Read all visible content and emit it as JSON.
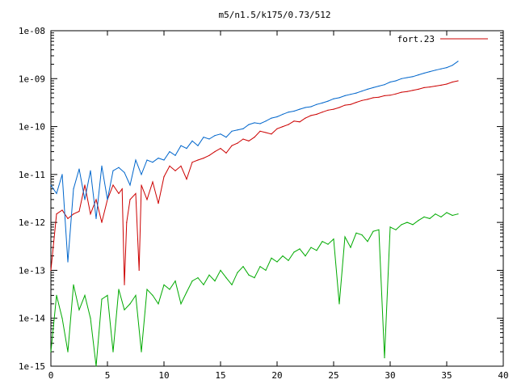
{
  "chart_data": {
    "type": "line",
    "title": "m5/n1.5/k175/0.73/512",
    "xlabel": "",
    "ylabel": "",
    "xlim": [
      0,
      40
    ],
    "ylim": [
      1e-15,
      1e-08
    ],
    "yscale": "log",
    "grid": false,
    "legend_position": "top-right",
    "x_ticks": [
      "0",
      "5",
      "10",
      "15",
      "20",
      "25",
      "30",
      "35",
      "40"
    ],
    "y_ticks": [
      "1e-15",
      "1e-14",
      "1e-13",
      "1e-12",
      "1e-11",
      "1e-10",
      "1e-09",
      "1e-08"
    ],
    "series": [
      {
        "name": "fort.23",
        "color": "#cc0000",
        "x": [
          0,
          0.5,
          1,
          1.5,
          2,
          2.5,
          3,
          3.5,
          4,
          4.5,
          5,
          5.5,
          6,
          6.3,
          6.5,
          6.7,
          7,
          7.5,
          7.8,
          8,
          8.5,
          9,
          9.5,
          10,
          10.5,
          11,
          11.5,
          12,
          12.5,
          13,
          13.5,
          14,
          14.5,
          15,
          15.5,
          16,
          16.5,
          17,
          17.5,
          18,
          18.5,
          19,
          19.5,
          20,
          20.5,
          21,
          21.5,
          22,
          22.5,
          23,
          23.5,
          24,
          24.5,
          25,
          25.5,
          26,
          26.5,
          27,
          27.5,
          28,
          28.5,
          29,
          29.5,
          30,
          30.5,
          31,
          31.5,
          32,
          32.5,
          33,
          33.5,
          34,
          34.5,
          35,
          35.5,
          36
        ],
        "y": [
          1e-13,
          1.5e-12,
          1.8e-12,
          1.2e-12,
          1.5e-12,
          1.7e-12,
          6e-12,
          1.5e-12,
          3e-12,
          1e-12,
          3e-12,
          6e-12,
          4e-12,
          5e-12,
          5e-14,
          1e-12,
          3e-12,
          4e-12,
          1e-13,
          6e-12,
          3e-12,
          7e-12,
          2.5e-12,
          9e-12,
          1.5e-11,
          1.2e-11,
          1.5e-11,
          8e-12,
          1.8e-11,
          2e-11,
          2.2e-11,
          2.5e-11,
          3e-11,
          3.5e-11,
          2.8e-11,
          4e-11,
          4.5e-11,
          5.5e-11,
          5e-11,
          6e-11,
          8e-11,
          7.5e-11,
          7e-11,
          9e-11,
          1e-10,
          1.1e-10,
          1.3e-10,
          1.25e-10,
          1.5e-10,
          1.7e-10,
          1.8e-10,
          2e-10,
          2.2e-10,
          2.3e-10,
          2.5e-10,
          2.8e-10,
          2.9e-10,
          3.2e-10,
          3.5e-10,
          3.7e-10,
          4e-10,
          4.1e-10,
          4.4e-10,
          4.5e-10,
          4.8e-10,
          5.2e-10,
          5.4e-10,
          5.7e-10,
          6e-10,
          6.5e-10,
          6.7e-10,
          7e-10,
          7.3e-10,
          7.7e-10,
          8.5e-10,
          9e-10
        ]
      },
      {
        "color": "#0066cc",
        "x": [
          0,
          0.5,
          1,
          1.5,
          2,
          2.5,
          3,
          3.5,
          4,
          4.5,
          5,
          5.5,
          6,
          6.5,
          7,
          7.5,
          8,
          8.5,
          9,
          9.5,
          10,
          10.5,
          11,
          11.5,
          12,
          12.5,
          13,
          13.5,
          14,
          14.5,
          15,
          15.5,
          16,
          16.5,
          17,
          17.5,
          18,
          18.5,
          19,
          19.5,
          20,
          20.5,
          21,
          21.5,
          22,
          22.5,
          23,
          23.5,
          24,
          24.5,
          25,
          25.5,
          26,
          26.5,
          27,
          27.5,
          28,
          28.5,
          29,
          29.5,
          30,
          30.5,
          31,
          31.5,
          32,
          32.5,
          33,
          33.5,
          34,
          34.5,
          35,
          35.5,
          36
        ],
        "y": [
          6e-12,
          4e-12,
          1e-11,
          1.5e-13,
          5e-12,
          1.3e-11,
          3e-12,
          1.2e-11,
          1.2e-12,
          1.5e-11,
          3e-12,
          1.2e-11,
          1.4e-11,
          1.1e-11,
          6e-12,
          2e-11,
          1e-11,
          2e-11,
          1.8e-11,
          2.2e-11,
          2e-11,
          3e-11,
          2.5e-11,
          4e-11,
          3.5e-11,
          5e-11,
          4e-11,
          6e-11,
          5.5e-11,
          6.5e-11,
          7e-11,
          6e-11,
          8e-11,
          8.5e-11,
          9e-11,
          1.1e-10,
          1.2e-10,
          1.15e-10,
          1.3e-10,
          1.5e-10,
          1.6e-10,
          1.8e-10,
          2e-10,
          2.1e-10,
          2.3e-10,
          2.5e-10,
          2.6e-10,
          2.9e-10,
          3.1e-10,
          3.4e-10,
          3.8e-10,
          4e-10,
          4.4e-10,
          4.7e-10,
          5e-10,
          5.5e-10,
          6e-10,
          6.5e-10,
          7e-10,
          7.5e-10,
          8.5e-10,
          9e-10,
          1e-09,
          1.05e-09,
          1.1e-09,
          1.2e-09,
          1.3e-09,
          1.4e-09,
          1.5e-09,
          1.6e-09,
          1.7e-09,
          1.9e-09,
          2.3e-09
        ]
      },
      {
        "color": "#00aa00",
        "x": [
          0,
          0.5,
          1,
          1.5,
          2,
          2.5,
          3,
          3.5,
          4,
          4.5,
          5,
          5.5,
          6,
          6.5,
          7,
          7.5,
          8,
          8.5,
          9,
          9.5,
          10,
          10.5,
          11,
          11.5,
          12,
          12.5,
          13,
          13.5,
          14,
          14.5,
          15,
          15.5,
          16,
          16.5,
          17,
          17.5,
          18,
          18.5,
          19,
          19.5,
          20,
          20.5,
          21,
          21.5,
          22,
          22.5,
          23,
          23.5,
          24,
          24.5,
          25,
          25.5,
          26,
          26.5,
          27,
          27.5,
          28,
          28.5,
          29,
          29.5,
          30,
          30.5,
          31,
          31.5,
          32,
          32.5,
          33,
          33.5,
          34,
          34.5,
          35,
          35.5,
          36
        ],
        "y": [
          2e-15,
          3e-14,
          1e-14,
          2e-15,
          5e-14,
          1.5e-14,
          3e-14,
          1e-14,
          1e-15,
          2.5e-14,
          3e-14,
          2e-15,
          4e-14,
          1.5e-14,
          2e-14,
          3e-14,
          2e-15,
          4e-14,
          3e-14,
          2e-14,
          5e-14,
          4e-14,
          6e-14,
          2e-14,
          3.5e-14,
          6e-14,
          7e-14,
          5e-14,
          8e-14,
          6e-14,
          1e-13,
          7e-14,
          5e-14,
          9e-14,
          1.2e-13,
          8e-14,
          7e-14,
          1.2e-13,
          1e-13,
          1.8e-13,
          1.5e-13,
          2e-13,
          1.6e-13,
          2.4e-13,
          2.8e-13,
          2e-13,
          3e-13,
          2.6e-13,
          4e-13,
          3.5e-13,
          4.5e-13,
          2e-14,
          5e-13,
          3e-13,
          6e-13,
          5.5e-13,
          4e-13,
          6.5e-13,
          7e-13,
          1.5e-15,
          8e-13,
          7e-13,
          9e-13,
          1e-12,
          9e-13,
          1.1e-12,
          1.3e-12,
          1.2e-12,
          1.5e-12,
          1.3e-12,
          1.6e-12,
          1.4e-12,
          1.5e-12
        ]
      }
    ]
  }
}
